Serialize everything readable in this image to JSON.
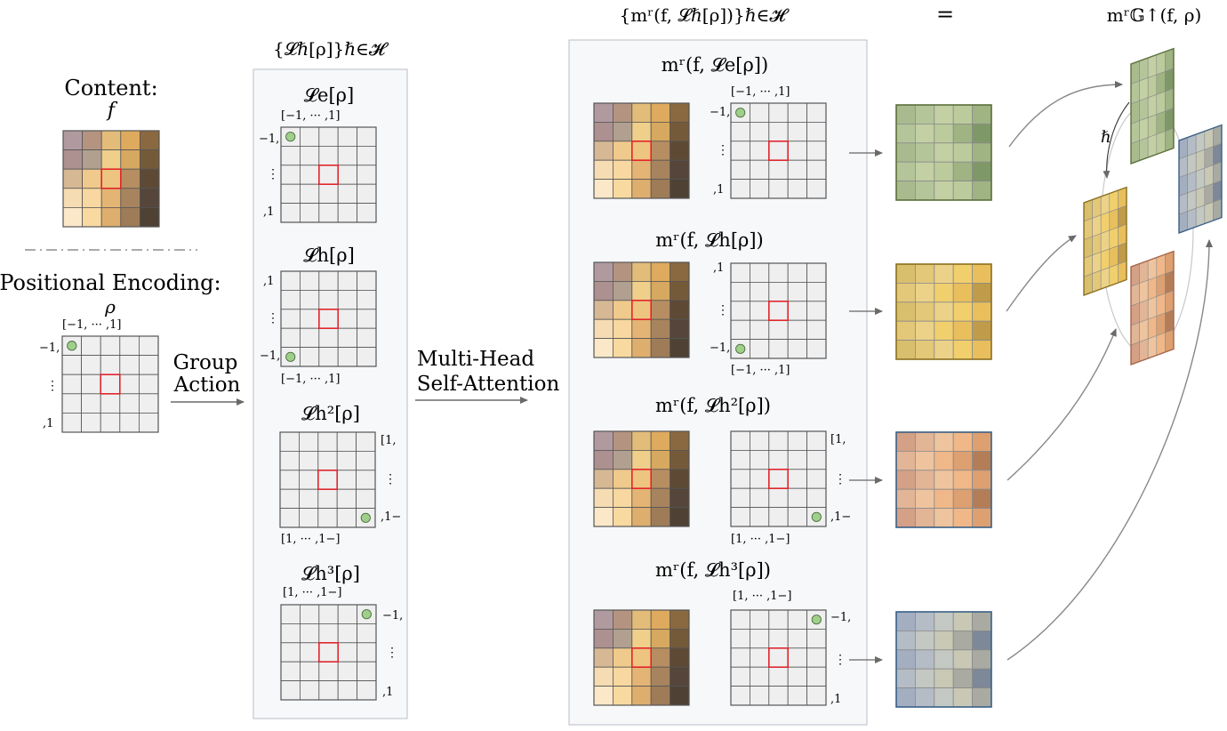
{
  "content": {
    "title": "Content:",
    "symbol": "f"
  },
  "positional": {
    "title": "Positional Encoding:",
    "symbol": "ρ",
    "top_axis": "[−1,    ···     ,1]",
    "left_top": "−1,",
    "left_mid": "⋮",
    "left_bot": ",1"
  },
  "group_action": {
    "line1": "Group",
    "line2": "Action"
  },
  "mhsa": {
    "line1": "Multi-Head",
    "line2": "Self-Attention"
  },
  "lifted_set": {
    "label": "{𝓛ℏ[ρ]}ℏ∈𝓗"
  },
  "attn_set": {
    "label": "{mʳ(f, 𝓛ℏ[ρ])}ℏ∈𝓗"
  },
  "equals": "=",
  "output": {
    "label": "mʳ𝔾↑(f, ρ)",
    "hbar": "ℏ"
  },
  "lifted": [
    {
      "title": "𝓛e[ρ]",
      "top_axis": "[−1,    ···     ,1]",
      "side_a": "−1,",
      "side_b": "⋮",
      "side_c": ",1",
      "bottom_axis": ""
    },
    {
      "title": "𝓛h[ρ]",
      "top_axis": "",
      "side_a": ",1",
      "side_b": "⋮",
      "side_c": "−1,",
      "bottom_axis": "[−1,    ···     ,1]"
    },
    {
      "title": "𝓛h²[ρ]",
      "top_axis": "",
      "side_a": "[1,",
      "side_b": "⋮",
      "side_c": ",1−",
      "bottom_axis": "[1,    ···    ,1−]"
    },
    {
      "title": "𝓛h³[ρ]",
      "top_axis": "[1,    ···    ,1−]",
      "side_a": "−1,",
      "side_b": "⋮",
      "side_c": ",1",
      "bottom_axis": ""
    }
  ],
  "attn": [
    {
      "title": "mʳ(f, 𝓛e[ρ])",
      "top_axis": "[−1,    ···     ,1]",
      "side_a": "−1,",
      "side_b": "⋮",
      "side_c": ",1",
      "bottom_axis": ""
    },
    {
      "title": "mʳ(f, 𝓛h[ρ])",
      "top_axis": "",
      "side_a": ",1",
      "side_b": "⋮",
      "side_c": "−1,",
      "bottom_axis": "[−1,    ···     ,1]"
    },
    {
      "title": "mʳ(f, 𝓛h²[ρ])",
      "top_axis": "",
      "side_a": "[1,",
      "side_b": "⋮",
      "side_c": ",1−",
      "bottom_axis": "[1,    ···    ,1−]"
    },
    {
      "title": "mʳ(f, 𝓛h³[ρ])",
      "top_axis": "[1,    ···    ,1−]",
      "side_a": "−1,",
      "side_b": "⋮",
      "side_c": ",1",
      "bottom_axis": ""
    }
  ],
  "colors": {
    "content_grid": [
      [
        "#b09aa0",
        "#b49480",
        "#e3bc7a",
        "#ddaa5e",
        "#8a6840"
      ],
      [
        "#ad9090",
        "#b1a090",
        "#efcf8a",
        "#d6a860",
        "#755a3a"
      ],
      [
        "#d6b894",
        "#f0c98c",
        "#edc580",
        "#b68e62",
        "#5e4a34"
      ],
      [
        "#f6dcb2",
        "#f8d8a0",
        "#e4b474",
        "#a7845e",
        "#55453a"
      ],
      [
        "#fbe8c8",
        "#f8d9a0",
        "#ddae6e",
        "#9e7c58",
        "#4f4234"
      ]
    ],
    "green": [
      "#a9bb8e",
      "#b4c59a",
      "#c3d0a4",
      "#bccb9b",
      "#9fb383",
      "#7f9868"
    ],
    "yellow": [
      "#d8bf6e",
      "#e3c879",
      "#ecd289",
      "#f1cf6c",
      "#e8bf5c",
      "#bf9b4a"
    ],
    "orange": [
      "#d4a086",
      "#e2b596",
      "#eec49f",
      "#f0b788",
      "#dca071",
      "#b37d58"
    ],
    "blue": [
      "#a3aec0",
      "#b4bcc6",
      "#c3c8c2",
      "#c9c8b5",
      "#a9aaa1",
      "#7d8898"
    ],
    "grid_fill": "#efeff0",
    "grid_line": "#555555",
    "highlight": "#e0262b",
    "marker": "#9fd08a"
  }
}
